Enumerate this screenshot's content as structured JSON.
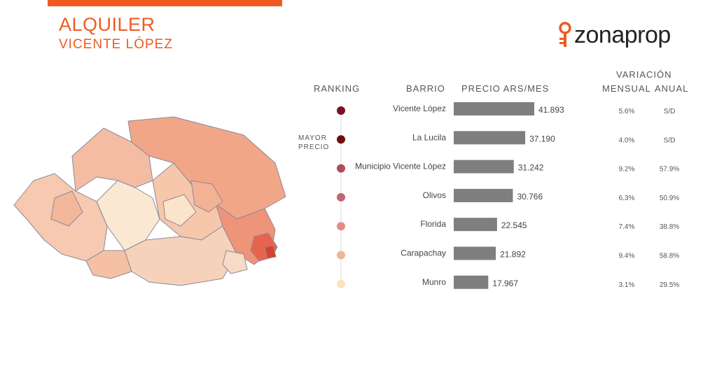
{
  "header": {
    "title": "ALQUILER",
    "subtitle": "VICENTE LÓPEZ",
    "brand": "zonaprop"
  },
  "colors": {
    "accent": "#f05a22",
    "bar": "#7f7f7f"
  },
  "columns": {
    "ranking": "RANKING",
    "barrio": "BARRIO",
    "precio": "PRECIO ARS/MES",
    "variacion": "VARIACIÓN",
    "mensual": "MENSUAL",
    "anual": "ANUAL"
  },
  "legend_note": {
    "line1": "MAYOR",
    "line2": "PRECIO"
  },
  "chart_data": {
    "type": "bar",
    "orientation": "horizontal",
    "categories": [
      "Vicente López",
      "La Lucila",
      "Municipio Vicente López",
      "Olivos",
      "Florida",
      "Carapachay",
      "Munro"
    ],
    "values": [
      41893,
      37190,
      31242,
      30766,
      22545,
      21892,
      17967
    ],
    "value_labels": [
      "41.893",
      "37.190",
      "31.242",
      "30.766",
      "22.545",
      "21.892",
      "17.967"
    ],
    "variacion_mensual": [
      "5.6%",
      "4.0%",
      "9.2%",
      "6.3%",
      "7.4%",
      "9.4%",
      "3.1%"
    ],
    "variacion_anual": [
      "S/D",
      "S/D",
      "57.9%",
      "50.9%",
      "38.8%",
      "58.8%",
      "29.5%"
    ],
    "rank_colors": [
      "#7a1020",
      "#6e0e14",
      "#b04c5a",
      "#c46474",
      "#e58c84",
      "#f2b49a",
      "#f8e6b8"
    ]
  }
}
